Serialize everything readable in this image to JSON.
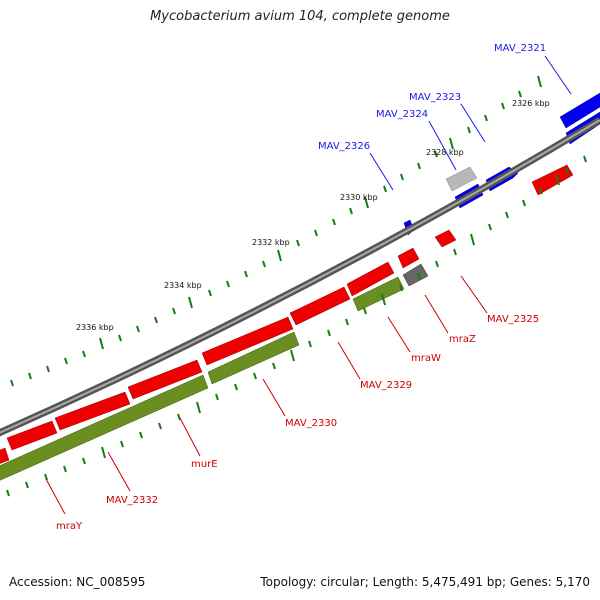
{
  "title": "Mycobacterium avium 104, complete genome",
  "footer": {
    "accession": "Accession: NC_008595",
    "summary": "Topology: circular; Length: 5,475,491 bp; Genes: 5,170"
  },
  "colors": {
    "forward_cds": "#0000ee",
    "reverse_cds": "#ee0000",
    "backbone": "#777777",
    "other_feature": "#aaaaaa",
    "rna": "#666666",
    "olive_track": "#6b8e23",
    "ticks": "#1a7a1a",
    "forward_label": "#1a1ae6",
    "reverse_label": "#cc0000"
  },
  "scale_labels": [
    "2326 kbp",
    "2328 kbp",
    "2330 kbp",
    "2332 kbp",
    "2334 kbp",
    "2336 kbp"
  ],
  "forward_labels": [
    "MAV_2321",
    "MAV_2323",
    "MAV_2324",
    "MAV_2326"
  ],
  "reverse_labels": [
    "MAV_2325",
    "mraZ",
    "mraW",
    "MAV_2329",
    "MAV_2330",
    "murE",
    "MAV_2332",
    "mraY"
  ]
}
